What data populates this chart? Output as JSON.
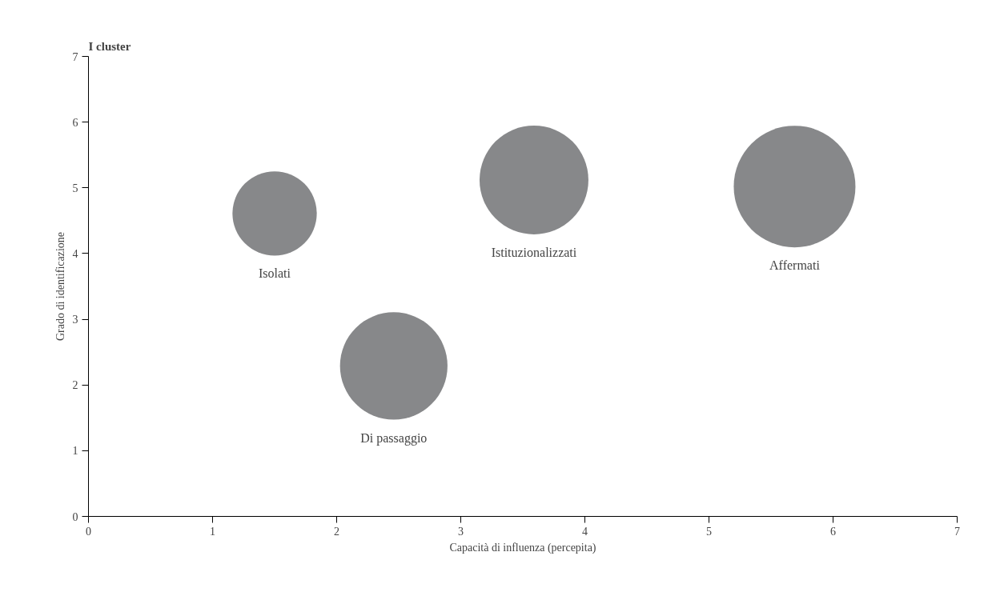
{
  "chart_data": {
    "type": "bubble",
    "title": "I cluster",
    "xlabel": "Capacità di influenza (percepita)",
    "ylabel": "Grado di identificazione",
    "series": [
      {
        "name": "Isolati",
        "color": "#87888a",
        "x": [
          1.5
        ],
        "values": [
          4.61
        ],
        "sizes": [
          0.48
        ]
      },
      {
        "name": "Istituzionalizzati",
        "color": "#87888a",
        "x": [
          3.59
        ],
        "values": [
          5.12
        ],
        "sizes": [
          0.8
        ]
      },
      {
        "name": "Affermati",
        "color": "#87888a",
        "x": [
          5.69
        ],
        "values": [
          5.02
        ],
        "sizes": [
          1
        ]
      },
      {
        "name": "Di passaggio",
        "color": "#87888a",
        "x": [
          2.46
        ],
        "values": [
          2.29
        ],
        "sizes": [
          0.78
        ]
      }
    ],
    "xlim": [
      0,
      7
    ],
    "ylim": [
      0,
      7
    ],
    "xticks": [
      0,
      1,
      2,
      3,
      4,
      5,
      6,
      7
    ],
    "yticks": [
      0,
      1,
      2,
      3,
      4,
      5,
      6,
      7
    ],
    "grid": false
  }
}
